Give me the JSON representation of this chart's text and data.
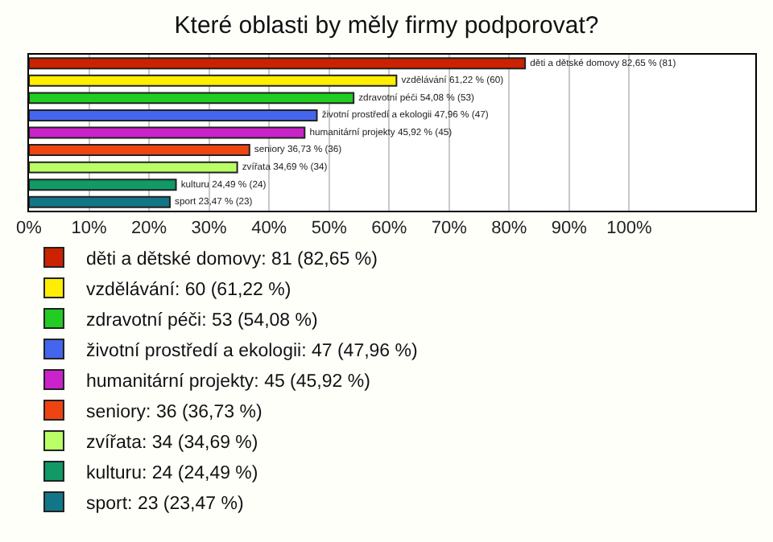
{
  "chart_data": {
    "type": "bar",
    "orientation": "horizontal",
    "title": "Které oblasti by měly firmy podporovat?",
    "categories": [
      null,
      null,
      null,
      null,
      null,
      null,
      null,
      null,
      null
    ],
    "xlim": [
      0,
      121
    ],
    "xticks": [
      {
        "value": 0,
        "label": "0%"
      },
      {
        "value": 10,
        "label": "10%"
      },
      {
        "value": 20,
        "label": "20%"
      },
      {
        "value": 30,
        "label": "30%"
      },
      {
        "value": 40,
        "label": "40%"
      },
      {
        "value": 50,
        "label": "50%"
      },
      {
        "value": 60,
        "label": "60%"
      },
      {
        "value": 70,
        "label": "70%"
      },
      {
        "value": 80,
        "label": "80%"
      },
      {
        "value": 90,
        "label": "90%"
      },
      {
        "value": 100,
        "label": "100%"
      }
    ],
    "grid": "x",
    "legend": "bottom",
    "tick_labels": "x",
    "series": [
      {
        "name": "děti a dětské domovy: 81 (82,65 %)",
        "color": "#cc2200",
        "values": [
          82.65,
          null,
          null,
          null,
          null,
          null,
          null,
          null,
          null
        ],
        "value_labels": [
          "děti a dětské domovy 82,65 % (81)",
          null,
          null,
          null,
          null,
          null,
          null,
          null,
          null
        ]
      },
      {
        "name": "vzdělávání: 60 (61,22 %)",
        "color": "#ffee00",
        "values": [
          null,
          61.22,
          null,
          null,
          null,
          null,
          null,
          null,
          null
        ],
        "value_labels": [
          null,
          "vzdělávání 61,22 % (60)",
          null,
          null,
          null,
          null,
          null,
          null,
          null
        ]
      },
      {
        "name": "zdravotní péči: 53 (54,08 %)",
        "color": "#22cc22",
        "values": [
          null,
          null,
          54.08,
          null,
          null,
          null,
          null,
          null,
          null
        ],
        "value_labels": [
          null,
          null,
          "zdravotní péči 54,08 % (53)",
          null,
          null,
          null,
          null,
          null,
          null
        ]
      },
      {
        "name": "životní prostředí a ekologii: 47 (47,96 %)",
        "color": "#4466ee",
        "values": [
          null,
          null,
          null,
          47.96,
          null,
          null,
          null,
          null,
          null
        ],
        "value_labels": [
          null,
          null,
          null,
          "životní prostředí a ekologii 47,96 % (47)",
          null,
          null,
          null,
          null,
          null
        ]
      },
      {
        "name": "humanitární projekty: 45 (45,92 %)",
        "color": "#cc22cc",
        "values": [
          null,
          null,
          null,
          null,
          45.92,
          null,
          null,
          null,
          null
        ],
        "value_labels": [
          null,
          null,
          null,
          null,
          "humanitární projekty 45,92 % (45)",
          null,
          null,
          null,
          null
        ]
      },
      {
        "name": "seniory: 36 (36,73 %)",
        "color": "#ee4411",
        "values": [
          null,
          null,
          null,
          null,
          null,
          36.73,
          null,
          null,
          null
        ],
        "value_labels": [
          null,
          null,
          null,
          null,
          null,
          "seniory 36,73 % (36)",
          null,
          null,
          null
        ]
      },
      {
        "name": "zvířata: 34 (34,69 %)",
        "color": "#bbff66",
        "values": [
          null,
          null,
          null,
          null,
          null,
          null,
          34.69,
          null,
          null
        ],
        "value_labels": [
          null,
          null,
          null,
          null,
          null,
          null,
          "zvířata 34,69 % (34)",
          null,
          null
        ]
      },
      {
        "name": "kulturu: 24 (24,49 %)",
        "color": "#119966",
        "values": [
          null,
          null,
          null,
          null,
          null,
          null,
          null,
          24.49,
          null
        ],
        "value_labels": [
          null,
          null,
          null,
          null,
          null,
          null,
          null,
          "kulturu 24,49 % (24)",
          null
        ]
      },
      {
        "name": "sport: 23 (23,47 %)",
        "color": "#117788",
        "values": [
          null,
          null,
          null,
          null,
          null,
          null,
          null,
          null,
          23.47
        ],
        "value_labels": [
          null,
          null,
          null,
          null,
          null,
          null,
          null,
          null,
          "sport 23,47 % (23)"
        ]
      }
    ]
  }
}
